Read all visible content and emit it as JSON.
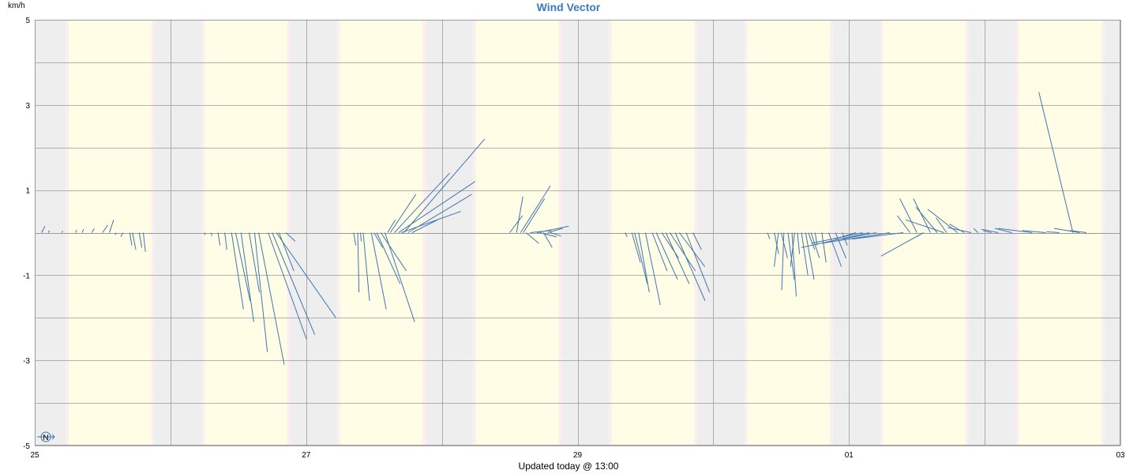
{
  "chart_data": {
    "type": "vector",
    "title": "Wind Vector",
    "ylabel": "km/h",
    "footer": "Updated today @ 13:00",
    "ylim": [
      -5,
      5
    ],
    "xlim": [
      0,
      8
    ],
    "y_ticks": [
      {
        "value": 5,
        "label": "5"
      },
      {
        "value": 3,
        "label": "3"
      },
      {
        "value": 1,
        "label": "1"
      },
      {
        "value": -1,
        "label": "-1"
      },
      {
        "value": -3,
        "label": "-3"
      },
      {
        "value": -5,
        "label": "-5"
      }
    ],
    "x_ticks": [
      {
        "value": 0,
        "label": "25"
      },
      {
        "value": 2,
        "label": "27"
      },
      {
        "value": 4,
        "label": "29"
      },
      {
        "value": 6,
        "label": "01"
      },
      {
        "value": 8,
        "label": "03"
      }
    ],
    "grid": true,
    "compass_label": "N",
    "colors": {
      "vector": "#3f76b0",
      "night": "#eeeeee",
      "day": "#fffde6",
      "twilight": "#fbeef0",
      "grid": "#9a9a9a",
      "title": "#3b7bbf"
    },
    "day_periods": [
      [
        0.25,
        0.86
      ],
      [
        1.25,
        1.86
      ],
      [
        2.25,
        2.86
      ],
      [
        3.25,
        3.86
      ],
      [
        4.25,
        4.86
      ],
      [
        5.25,
        5.86
      ],
      [
        6.25,
        6.86
      ],
      [
        7.25,
        7.86
      ]
    ],
    "vectors": [
      {
        "x": 0.05,
        "u": 0.08,
        "v": 0.15
      },
      {
        "x": 0.1,
        "u": 0.03,
        "v": 0.05
      },
      {
        "x": 0.2,
        "u": 0.02,
        "v": 0.04
      },
      {
        "x": 0.3,
        "u": 0.03,
        "v": 0.06
      },
      {
        "x": 0.35,
        "u": 0.03,
        "v": 0.08
      },
      {
        "x": 0.42,
        "u": 0.06,
        "v": 0.1
      },
      {
        "x": 0.5,
        "u": 0.12,
        "v": 0.18
      },
      {
        "x": 0.55,
        "u": 0.1,
        "v": 0.3
      },
      {
        "x": 0.6,
        "u": -0.02,
        "v": -0.05
      },
      {
        "x": 0.65,
        "u": -0.05,
        "v": -0.1
      },
      {
        "x": 0.7,
        "u": 0.05,
        "v": -0.3
      },
      {
        "x": 0.72,
        "u": 0.08,
        "v": -0.4
      },
      {
        "x": 0.77,
        "u": 0.06,
        "v": -0.35
      },
      {
        "x": 0.8,
        "u": 0.05,
        "v": -0.45
      },
      {
        "x": 1.25,
        "u": 0.02,
        "v": -0.05
      },
      {
        "x": 1.3,
        "u": 0.02,
        "v": -0.08
      },
      {
        "x": 1.35,
        "u": 0.05,
        "v": -0.3
      },
      {
        "x": 1.4,
        "u": 0.05,
        "v": -0.4
      },
      {
        "x": 1.45,
        "u": 0.28,
        "v": -1.8
      },
      {
        "x": 1.48,
        "u": 0.34,
        "v": -1.6
      },
      {
        "x": 1.52,
        "u": 0.3,
        "v": -2.1
      },
      {
        "x": 1.58,
        "u": 0.24,
        "v": -1.4
      },
      {
        "x": 1.62,
        "u": 0.3,
        "v": -2.8
      },
      {
        "x": 1.65,
        "u": 0.6,
        "v": -3.1
      },
      {
        "x": 1.72,
        "u": 0.9,
        "v": -2.5
      },
      {
        "x": 1.75,
        "u": 1.0,
        "v": -2.4
      },
      {
        "x": 1.78,
        "u": 1.4,
        "v": -2.0
      },
      {
        "x": 1.8,
        "u": 0.35,
        "v": -0.9
      },
      {
        "x": 1.85,
        "u": 0.22,
        "v": -0.2
      },
      {
        "x": 2.35,
        "u": 0.05,
        "v": -0.3
      },
      {
        "x": 2.38,
        "u": 0.03,
        "v": -1.4
      },
      {
        "x": 2.4,
        "u": 0.02,
        "v": -0.2
      },
      {
        "x": 2.42,
        "u": 0.15,
        "v": -1.6
      },
      {
        "x": 2.48,
        "u": 0.35,
        "v": -1.8
      },
      {
        "x": 2.5,
        "u": 0.2,
        "v": -0.35
      },
      {
        "x": 2.52,
        "u": 0.55,
        "v": -1.2
      },
      {
        "x": 2.55,
        "u": 0.6,
        "v": -0.9
      },
      {
        "x": 2.58,
        "u": 0.7,
        "v": -2.1
      },
      {
        "x": 2.6,
        "u": 0.18,
        "v": 0.3
      },
      {
        "x": 2.62,
        "u": 0.6,
        "v": 0.9
      },
      {
        "x": 2.65,
        "u": 1.3,
        "v": 1.4
      },
      {
        "x": 2.68,
        "u": 1.8,
        "v": 1.2
      },
      {
        "x": 2.7,
        "u": 1.4,
        "v": 0.5
      },
      {
        "x": 2.72,
        "u": 1.9,
        "v": 2.2
      },
      {
        "x": 2.75,
        "u": 1.5,
        "v": 0.9
      },
      {
        "x": 2.78,
        "u": 0.6,
        "v": 0.3
      },
      {
        "x": 3.5,
        "u": 0.3,
        "v": 0.4
      },
      {
        "x": 3.55,
        "u": 0.15,
        "v": 0.85
      },
      {
        "x": 3.58,
        "u": 0.7,
        "v": 1.1
      },
      {
        "x": 3.6,
        "u": 0.5,
        "v": 0.8
      },
      {
        "x": 3.62,
        "u": 0.3,
        "v": -0.25
      },
      {
        "x": 3.65,
        "u": 0.5,
        "v": 0.05
      },
      {
        "x": 3.7,
        "u": 0.75,
        "v": 0.15
      },
      {
        "x": 3.72,
        "u": 0.4,
        "v": -0.1
      },
      {
        "x": 3.75,
        "u": 0.2,
        "v": -0.35
      },
      {
        "x": 3.78,
        "u": 0.35,
        "v": 0.1
      },
      {
        "x": 3.8,
        "u": 0.25,
        "v": -0.08
      },
      {
        "x": 4.35,
        "u": 0.05,
        "v": -0.1
      },
      {
        "x": 4.4,
        "u": 0.2,
        "v": -0.7
      },
      {
        "x": 4.42,
        "u": 0.3,
        "v": -1.2
      },
      {
        "x": 4.45,
        "u": 0.25,
        "v": -1.4
      },
      {
        "x": 4.5,
        "u": 0.35,
        "v": -1.7
      },
      {
        "x": 4.55,
        "u": 0.35,
        "v": -0.9
      },
      {
        "x": 4.58,
        "u": 0.5,
        "v": -1.1
      },
      {
        "x": 4.62,
        "u": 0.4,
        "v": -0.6
      },
      {
        "x": 4.65,
        "u": 0.55,
        "v": -1.2
      },
      {
        "x": 4.68,
        "u": 0.6,
        "v": -0.9
      },
      {
        "x": 4.72,
        "u": 0.7,
        "v": -1.6
      },
      {
        "x": 4.75,
        "u": 0.6,
        "v": -0.8
      },
      {
        "x": 4.8,
        "u": 0.55,
        "v": -1.4
      },
      {
        "x": 4.85,
        "u": 0.2,
        "v": -0.4
      },
      {
        "x": 5.4,
        "u": 0.05,
        "v": -0.15
      },
      {
        "x": 5.45,
        "u": 0.1,
        "v": -0.5
      },
      {
        "x": 5.48,
        "u": -0.1,
        "v": -0.8
      },
      {
        "x": 5.5,
        "u": 0.15,
        "v": -0.6
      },
      {
        "x": 5.52,
        "u": -0.05,
        "v": -1.35
      },
      {
        "x": 5.55,
        "u": 0.15,
        "v": -1.1
      },
      {
        "x": 5.58,
        "u": 0.1,
        "v": -1.5
      },
      {
        "x": 5.6,
        "u": -0.1,
        "v": -0.8
      },
      {
        "x": 5.62,
        "u": 0.05,
        "v": -0.5
      },
      {
        "x": 5.65,
        "u": 0.15,
        "v": -1.0
      },
      {
        "x": 5.68,
        "u": 0.2,
        "v": -1.1
      },
      {
        "x": 5.7,
        "u": 0.15,
        "v": -0.4
      },
      {
        "x": 5.72,
        "u": 0.2,
        "v": -0.6
      },
      {
        "x": 5.75,
        "u": 0.05,
        "v": -0.3
      },
      {
        "x": 5.8,
        "u": 0.1,
        "v": -0.7
      },
      {
        "x": 5.85,
        "u": 0.3,
        "v": -0.8
      },
      {
        "x": 5.9,
        "u": 0.25,
        "v": -0.6
      },
      {
        "x": 5.95,
        "u": 0.12,
        "v": -0.3
      },
      {
        "x": 6.05,
        "u": -0.5,
        "v": -0.15
      },
      {
        "x": 6.1,
        "u": -1.2,
        "v": -0.25
      },
      {
        "x": 6.15,
        "u": -1.6,
        "v": -0.35
      },
      {
        "x": 6.2,
        "u": -0.8,
        "v": -0.15
      },
      {
        "x": 6.3,
        "u": -1.6,
        "v": -0.25
      },
      {
        "x": 6.4,
        "u": -1.2,
        "v": -0.15
      },
      {
        "x": 6.45,
        "u": -0.3,
        "v": 0.4
      },
      {
        "x": 6.5,
        "u": -0.4,
        "v": 0.8
      },
      {
        "x": 6.55,
        "u": -1.0,
        "v": -0.55
      },
      {
        "x": 6.6,
        "u": -0.4,
        "v": 0.8
      },
      {
        "x": 6.65,
        "u": -0.5,
        "v": 0.6
      },
      {
        "x": 6.7,
        "u": -0.9,
        "v": 0.3
      },
      {
        "x": 6.72,
        "u": -0.25,
        "v": 0.35
      },
      {
        "x": 6.8,
        "u": -0.7,
        "v": 0.55
      },
      {
        "x": 6.85,
        "u": -0.35,
        "v": 0.2
      },
      {
        "x": 6.9,
        "u": -0.55,
        "v": 0.12
      },
      {
        "x": 6.95,
        "u": -0.1,
        "v": 0.1
      },
      {
        "x": 7.05,
        "u": -0.2,
        "v": 0.05
      },
      {
        "x": 7.1,
        "u": -0.4,
        "v": 0.08
      },
      {
        "x": 7.2,
        "u": -0.4,
        "v": 0.1
      },
      {
        "x": 7.35,
        "u": -0.8,
        "v": 0.1
      },
      {
        "x": 7.45,
        "u": -0.55,
        "v": 0.05
      },
      {
        "x": 7.55,
        "u": -0.3,
        "v": 0.02
      },
      {
        "x": 7.65,
        "u": -0.8,
        "v": 3.3
      },
      {
        "x": 7.7,
        "u": -0.6,
        "v": 0.1
      },
      {
        "x": 7.75,
        "u": -0.4,
        "v": 0.05
      }
    ]
  }
}
